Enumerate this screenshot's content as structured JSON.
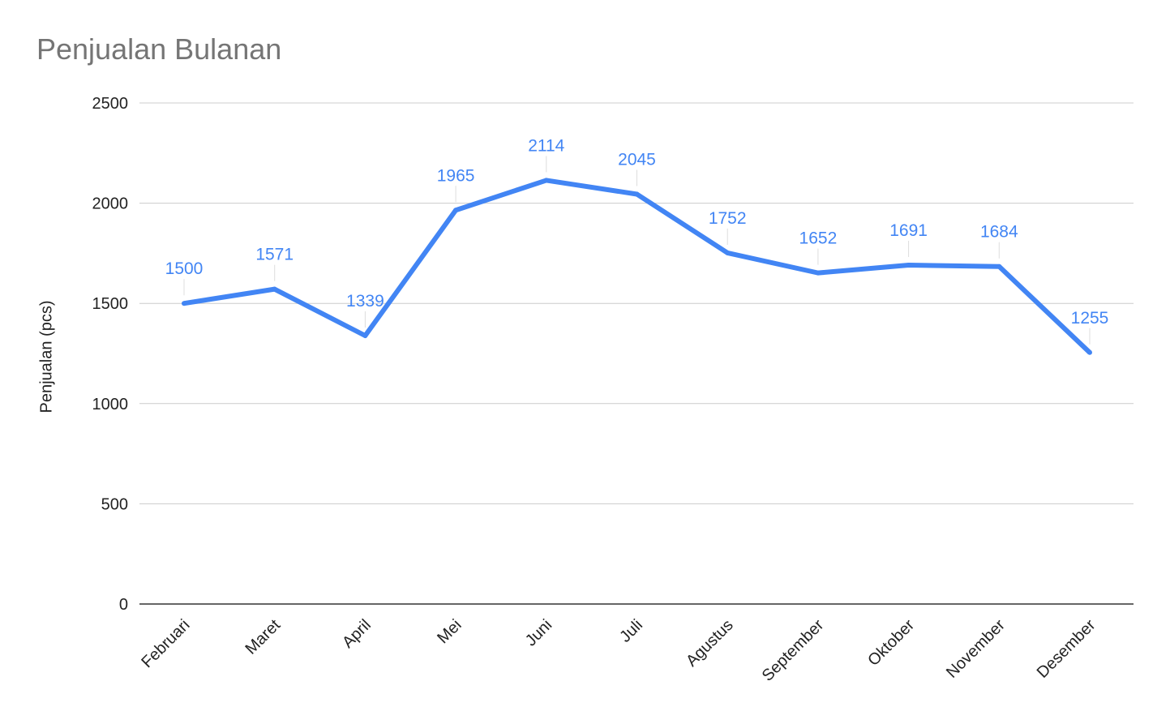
{
  "chart_data": {
    "type": "line",
    "title": "Penjualan Bulanan",
    "xlabel": "",
    "ylabel": "Penjualan (pcs)",
    "categories": [
      "Februari",
      "Maret",
      "April",
      "Mei",
      "Juni",
      "Juli",
      "Agustus",
      "September",
      "Oktober",
      "November",
      "Desember"
    ],
    "series": [
      {
        "values": [
          1500,
          1571,
          1339,
          1965,
          2114,
          2045,
          1752,
          1652,
          1691,
          1684,
          1255
        ]
      }
    ],
    "ylim": [
      0,
      2500
    ],
    "yticks": [
      0,
      500,
      1000,
      1500,
      2000,
      2500
    ],
    "grid": true,
    "data_labels": true,
    "line_color": "#4285f4",
    "legend": "none"
  }
}
